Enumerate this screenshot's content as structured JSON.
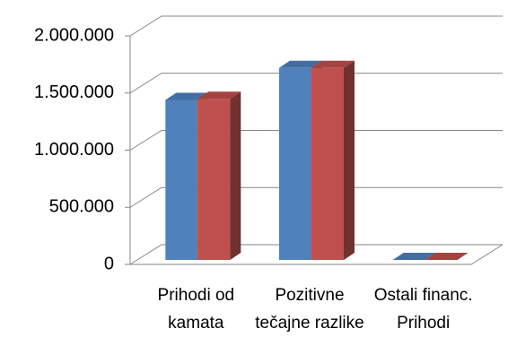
{
  "chart_data": {
    "type": "bar3d",
    "categories": [
      "Prihodi od kamata",
      "Pozitivne tečajne razlike",
      "Ostali financ. Prihodi"
    ],
    "series": [
      {
        "color": "#4f81bd",
        "values": [
          1400000,
          1680000,
          0
        ]
      },
      {
        "color": "#c0504d",
        "values": [
          1410000,
          1680000,
          0
        ]
      }
    ],
    "ylim": [
      0,
      2000000
    ],
    "yticks": [
      0,
      {
        "value": 500000,
        "label": "500.000"
      },
      {
        "value": 1000000,
        "label": "1.000.000"
      },
      {
        "value": 1500000,
        "label": "1.500.000"
      },
      {
        "value": 2000000,
        "label": "2.000.000"
      }
    ],
    "grid": true
  }
}
